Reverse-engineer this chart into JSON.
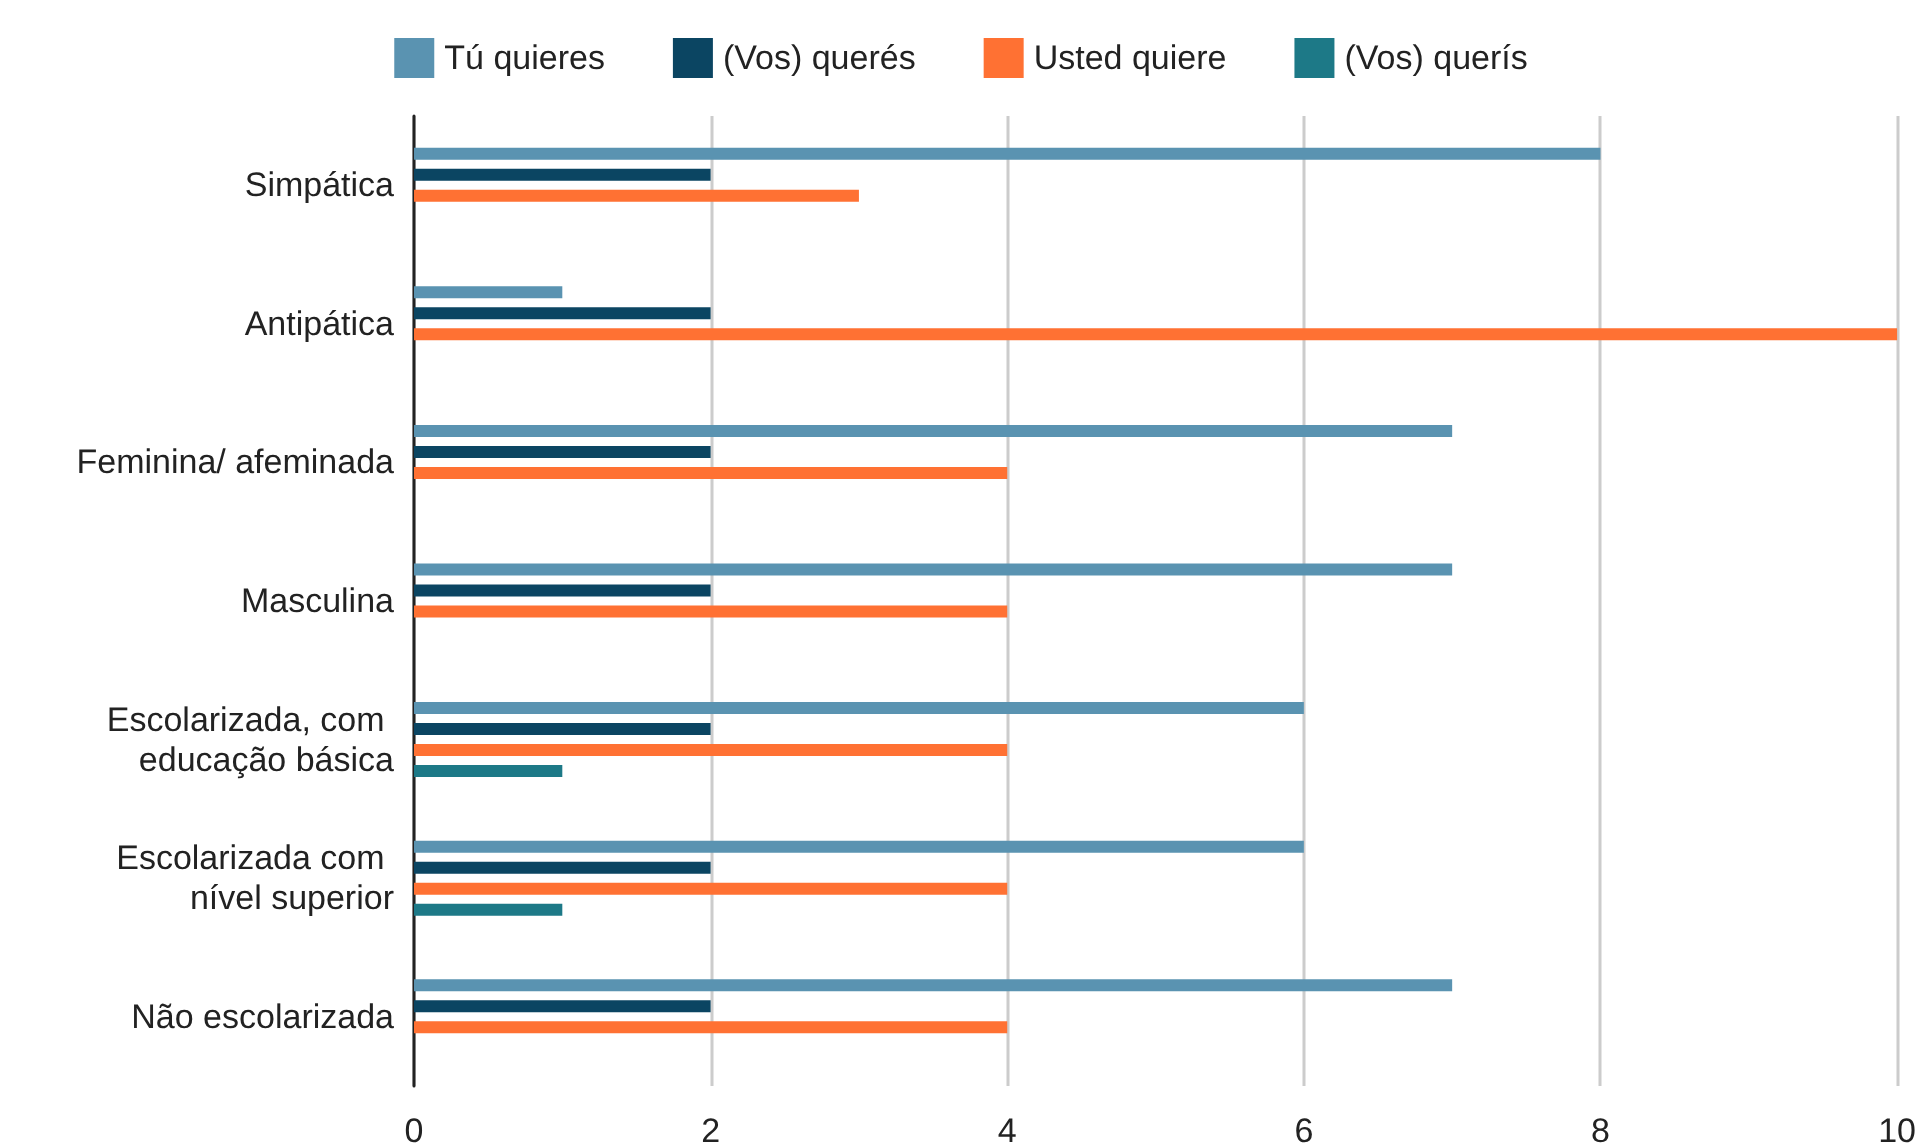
{
  "chart_data": {
    "type": "bar",
    "orientation": "horizontal",
    "categories": [
      "Simpática",
      "Antipática",
      "Feminina/ afeminada",
      "Masculina",
      "Escolarizada, com educação básica",
      "Escolarizada com nível superior",
      "Não escolarizada"
    ],
    "series": [
      {
        "name": "Tú quieres",
        "color": "#5a93b1",
        "values": [
          8,
          1,
          7,
          7,
          6,
          6,
          7
        ]
      },
      {
        "name": "(Vos) querés",
        "color": "#0b4562",
        "values": [
          2,
          2,
          2,
          2,
          2,
          2,
          2
        ]
      },
      {
        "name": "Usted quiere",
        "color": "#ff7133",
        "values": [
          3,
          10,
          4,
          4,
          4,
          4,
          4
        ]
      },
      {
        "name": "(Vos) querís",
        "color": "#1d7987",
        "values": [
          null,
          null,
          null,
          null,
          1,
          1,
          null
        ]
      }
    ],
    "xlim": [
      0,
      10
    ],
    "xticks": [
      0,
      2,
      4,
      6,
      8,
      10
    ],
    "grid": "x",
    "legend": "top"
  }
}
